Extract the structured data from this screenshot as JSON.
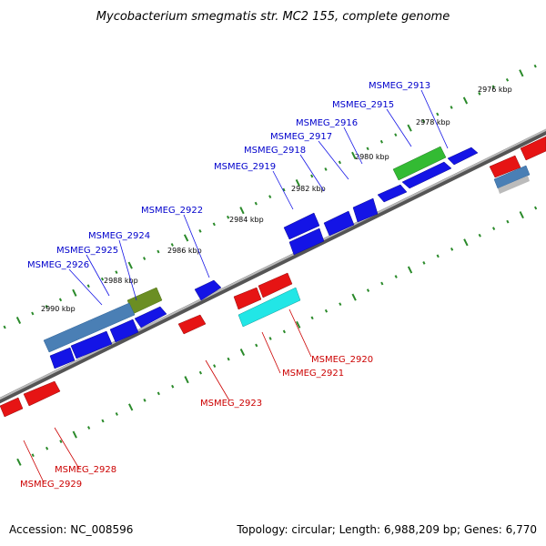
{
  "title": "Mycobacterium smegmatis str. MC2 155, complete genome",
  "footer": {
    "accession": "Accession: NC_008596",
    "topology": "Topology: circular; Length: 6,988,209 bp; Genes: 6,770"
  },
  "ticks": [
    {
      "label": "2976 kbp"
    },
    {
      "label": "2978 kbp"
    },
    {
      "label": "2980 kbp"
    },
    {
      "label": "2982 kbp"
    },
    {
      "label": "2984 kbp"
    },
    {
      "label": "2986 kbp"
    },
    {
      "label": "2988 kbp"
    },
    {
      "label": "2990 kbp"
    }
  ],
  "genes_forward": [
    {
      "name": "MSMEG_2913"
    },
    {
      "name": "MSMEG_2915"
    },
    {
      "name": "MSMEG_2916"
    },
    {
      "name": "MSMEG_2917"
    },
    {
      "name": "MSMEG_2918"
    },
    {
      "name": "MSMEG_2919"
    },
    {
      "name": "MSMEG_2922"
    },
    {
      "name": "MSMEG_2924"
    },
    {
      "name": "MSMEG_2925"
    },
    {
      "name": "MSMEG_2926"
    }
  ],
  "genes_reverse": [
    {
      "name": "MSMEG_2920"
    },
    {
      "name": "MSMEG_2921"
    },
    {
      "name": "MSMEG_2923"
    },
    {
      "name": "MSMEG_2928"
    },
    {
      "name": "MSMEG_2929"
    }
  ],
  "colors": {
    "forward_gene": "#1414e6",
    "reverse_gene": "#e61414",
    "backbone": "#888888",
    "tick": "#2a8a2a",
    "green_feature": "#33bb33",
    "olive_feature": "#6b8e23",
    "cyan_feature": "#22e6e6",
    "steel_feature": "#4a7fb5"
  }
}
